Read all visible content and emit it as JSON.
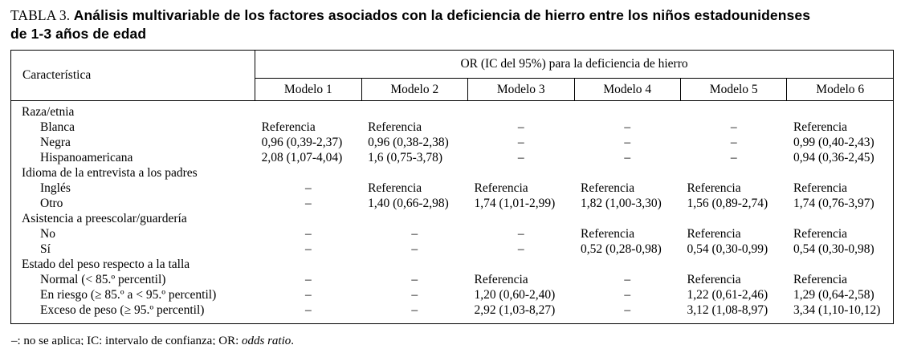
{
  "title": {
    "prefix": "TABLA 3.",
    "bold_line1": "Análisis multivariable de los factores asociados con la deficiencia de hierro entre los niños estadounidenses",
    "bold_line2": "de 1-3 años de edad"
  },
  "table": {
    "characteristic_header": "Característica",
    "or_group_header": "OR (IC del 95%) para la deficiencia de hierro",
    "model_headers": [
      "Modelo 1",
      "Modelo 2",
      "Modelo 3",
      "Modelo 4",
      "Modelo 5",
      "Modelo 6"
    ],
    "dash": "–",
    "sections": [
      {
        "label": "Raza/etnia",
        "rows": [
          {
            "label": "Blanca",
            "values": [
              "Referencia",
              "Referencia",
              "–",
              "–",
              "–",
              "Referencia"
            ]
          },
          {
            "label": "Negra",
            "values": [
              "0,96 (0,39-2,37)",
              "0,96 (0,38-2,38)",
              "–",
              "–",
              "–",
              "0,99 (0,40-2,43)"
            ]
          },
          {
            "label": "Hispanoamericana",
            "values": [
              "2,08 (1,07-4,04)",
              "1,6 (0,75-3,78)",
              "–",
              "–",
              "–",
              "0,94 (0,36-2,45)"
            ]
          }
        ]
      },
      {
        "label": "Idioma de la entrevista a los padres",
        "rows": [
          {
            "label": "Inglés",
            "values": [
              "–",
              "Referencia",
              "Referencia",
              "Referencia",
              "Referencia",
              "Referencia"
            ]
          },
          {
            "label": "Otro",
            "values": [
              "–",
              "1,40 (0,66-2,98)",
              "1,74 (1,01-2,99)",
              "1,82 (1,00-3,30)",
              "1,56 (0,89-2,74)",
              "1,74 (0,76-3,97)"
            ]
          }
        ]
      },
      {
        "label": "Asistencia a preescolar/guardería",
        "rows": [
          {
            "label": "No",
            "values": [
              "–",
              "–",
              "–",
              "Referencia",
              "Referencia",
              "Referencia"
            ]
          },
          {
            "label": "Sí",
            "values": [
              "–",
              "–",
              "–",
              "0,52 (0,28-0,98)",
              "0,54 (0,30-0,99)",
              "0,54 (0,30-0,98)"
            ]
          }
        ]
      },
      {
        "label": "Estado del peso respecto a la talla",
        "rows": [
          {
            "label": "Normal (< 85.º percentil)",
            "values": [
              "–",
              "–",
              "Referencia",
              "–",
              "Referencia",
              "Referencia"
            ]
          },
          {
            "label": "En riesgo (≥ 85.º a < 95.º percentil)",
            "values": [
              "–",
              "–",
              "1,20 (0,60-2,40)",
              "–",
              "1,22 (0,61-2,46)",
              "1,29 (0,64-2,58)"
            ]
          },
          {
            "label": "Exceso de peso (≥ 95.º percentil)",
            "values": [
              "–",
              "–",
              "2,92 (1,03-8,27)",
              "–",
              "3,12 (1,08-8,97)",
              "3,34 (1,10-10,12)"
            ]
          }
        ]
      }
    ]
  },
  "footnote": {
    "pre": "–: no se aplica; IC: intervalo de confianza; OR: ",
    "italic": "odds ratio",
    "post": "."
  }
}
